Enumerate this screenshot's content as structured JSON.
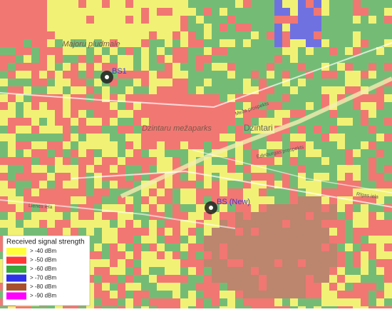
{
  "map": {
    "base_stations": [
      {
        "label": "BS1"
      },
      {
        "label": "BS (New)"
      }
    ],
    "place_labels": [
      "Majoru pludmale",
      "Dzintari",
      "Dzintaru mežaparks"
    ],
    "street_labels": [
      "Edinburgas prospekts",
      "Meža prospekts",
      "Rīgas iela",
      "Lienes iela"
    ],
    "legend": {
      "title": "Received signal strength",
      "entries": [
        {
          "label": "> -40 dBm",
          "color": "#ffff3c"
        },
        {
          "label": "> -50 dBm",
          "color": "#ff3838"
        },
        {
          "label": "> -60 dBm",
          "color": "#36a83c"
        },
        {
          "label": "> -70 dBm",
          "color": "#2f2fe8"
        },
        {
          "label": "> -80 dBm",
          "color": "#a8502e"
        },
        {
          "label": "> -90 dBm",
          "color": "#ff00ff"
        }
      ]
    }
  }
}
